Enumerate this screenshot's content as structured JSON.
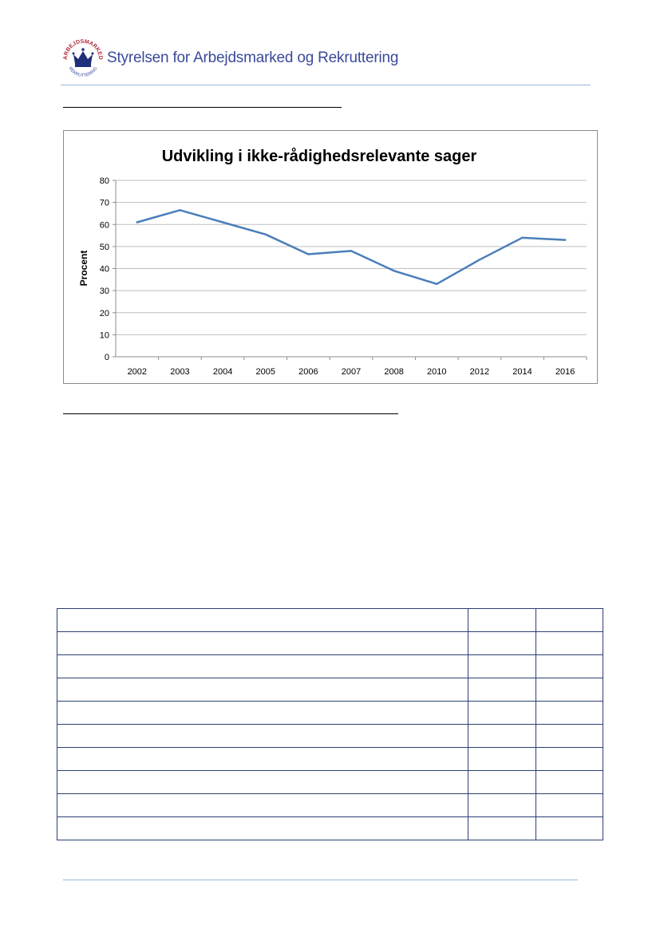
{
  "header": {
    "organization": "Styrelsen for Arbejdsmarked og Rekruttering",
    "logo_text_top": "ARBEJDSMARKED",
    "logo_text_bottom": "REKRUTTERING",
    "logo_icon": "crown-icon",
    "accent_color": "#3a4a9a"
  },
  "chart_data": {
    "type": "line",
    "title": "Udvikling i ikke-rådighedsrelevante sager",
    "xlabel": "",
    "ylabel": "Procent",
    "categories": [
      "2002",
      "2003",
      "2004",
      "2005",
      "2006",
      "2007",
      "2008",
      "2010",
      "2012",
      "2014",
      "2016"
    ],
    "series": [
      {
        "values": [
          61,
          66.5,
          61,
          55.5,
          46.5,
          48,
          39,
          33,
          44,
          54,
          53
        ],
        "color": "#4a7ebb"
      }
    ],
    "ylim": [
      0,
      80
    ],
    "yticks": [
      0,
      10,
      20,
      30,
      40,
      50,
      60,
      70,
      80
    ],
    "grid": true,
    "legend": "none"
  },
  "table": {
    "rows": 10,
    "cols": 3
  }
}
